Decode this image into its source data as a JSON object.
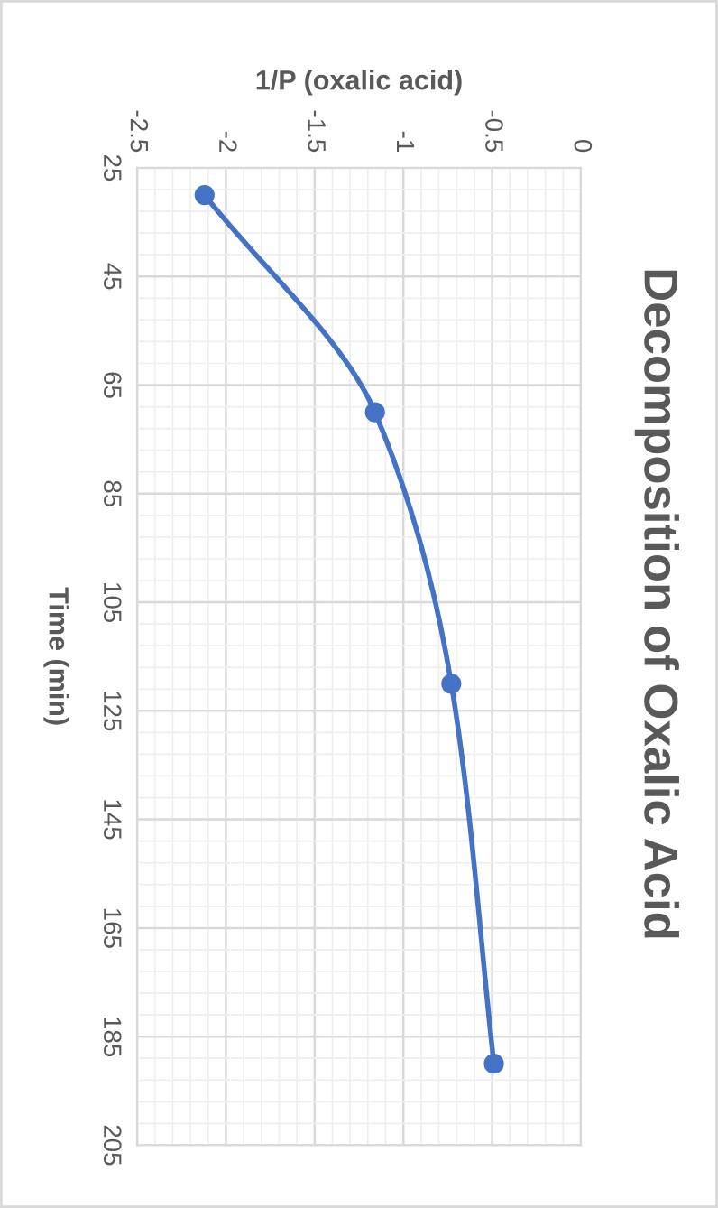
{
  "chart_data": {
    "type": "line",
    "title": "Decomposition of Oxalic Acid",
    "xlabel": "1/P (oxalic acid)",
    "ylabel": "Time (min)",
    "series": [
      {
        "color": "#4472c4",
        "x": [
          -2.12,
          -1.16,
          -0.73,
          -0.49
        ],
        "values": [
          30,
          70,
          120,
          190
        ]
      }
    ],
    "xlim": [
      -2.5,
      0
    ],
    "xticks": [
      -2.5,
      -2,
      -1.5,
      -1,
      -0.5,
      0
    ],
    "ylim": [
      205,
      25
    ],
    "yticks": [
      25,
      45,
      65,
      85,
      105,
      125,
      145,
      165,
      185,
      205
    ],
    "grid": true,
    "marker": "circle",
    "line_style": "solid"
  }
}
